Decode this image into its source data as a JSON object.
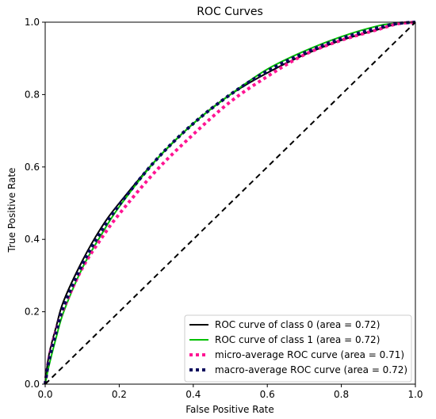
{
  "chart_data": {
    "type": "line",
    "title": "ROC Curves",
    "xlabel": "False Positive Rate",
    "ylabel": "True Positive Rate",
    "xlim": [
      0.0,
      1.0
    ],
    "ylim": [
      0.0,
      1.0
    ],
    "xticks": [
      "0.0",
      "0.2",
      "0.4",
      "0.6",
      "0.8",
      "1.0"
    ],
    "yticks": [
      "0.0",
      "0.2",
      "0.4",
      "0.6",
      "0.8",
      "1.0"
    ],
    "grid": false,
    "legend_position": "lower-right",
    "series": [
      {
        "name": "ROC curve of class 0 (area = 0.72)",
        "color": "#000000",
        "style": "solid",
        "x": [
          0,
          0.01,
          0.03,
          0.05,
          0.1,
          0.15,
          0.2,
          0.3,
          0.4,
          0.5,
          0.6,
          0.7,
          0.8,
          0.9,
          0.95,
          1.0
        ],
        "y": [
          0,
          0.08,
          0.16,
          0.23,
          0.34,
          0.43,
          0.5,
          0.62,
          0.72,
          0.8,
          0.86,
          0.91,
          0.95,
          0.98,
          0.995,
          1.0
        ]
      },
      {
        "name": "ROC curve of class 1 (area = 0.72)",
        "color": "#00c000",
        "style": "solid",
        "x": [
          0,
          0.01,
          0.03,
          0.05,
          0.1,
          0.15,
          0.2,
          0.3,
          0.4,
          0.5,
          0.6,
          0.7,
          0.8,
          0.9,
          0.95,
          1.0
        ],
        "y": [
          0,
          0.05,
          0.13,
          0.2,
          0.32,
          0.41,
          0.49,
          0.62,
          0.72,
          0.8,
          0.87,
          0.92,
          0.96,
          0.99,
          0.997,
          1.0
        ]
      },
      {
        "name": "micro-average ROC curve (area = 0.71)",
        "color": "#ff1493",
        "style": "dotted",
        "x": [
          0,
          0.01,
          0.03,
          0.05,
          0.1,
          0.15,
          0.2,
          0.3,
          0.4,
          0.5,
          0.6,
          0.7,
          0.8,
          0.9,
          0.95,
          1.0
        ],
        "y": [
          0,
          0.07,
          0.15,
          0.21,
          0.32,
          0.4,
          0.47,
          0.59,
          0.69,
          0.78,
          0.85,
          0.91,
          0.95,
          0.98,
          0.995,
          1.0
        ]
      },
      {
        "name": "macro-average ROC curve (area = 0.72)",
        "color": "#0a0a5c",
        "style": "dotted",
        "x": [
          0,
          0.01,
          0.03,
          0.05,
          0.1,
          0.15,
          0.2,
          0.3,
          0.4,
          0.5,
          0.6,
          0.7,
          0.8,
          0.9,
          0.95,
          1.0
        ],
        "y": [
          0,
          0.065,
          0.145,
          0.215,
          0.33,
          0.42,
          0.495,
          0.62,
          0.72,
          0.8,
          0.865,
          0.915,
          0.955,
          0.985,
          0.996,
          1.0
        ]
      }
    ],
    "reference_line": {
      "color": "#000000",
      "style": "dashed",
      "x": [
        0,
        1
      ],
      "y": [
        0,
        1
      ]
    }
  }
}
